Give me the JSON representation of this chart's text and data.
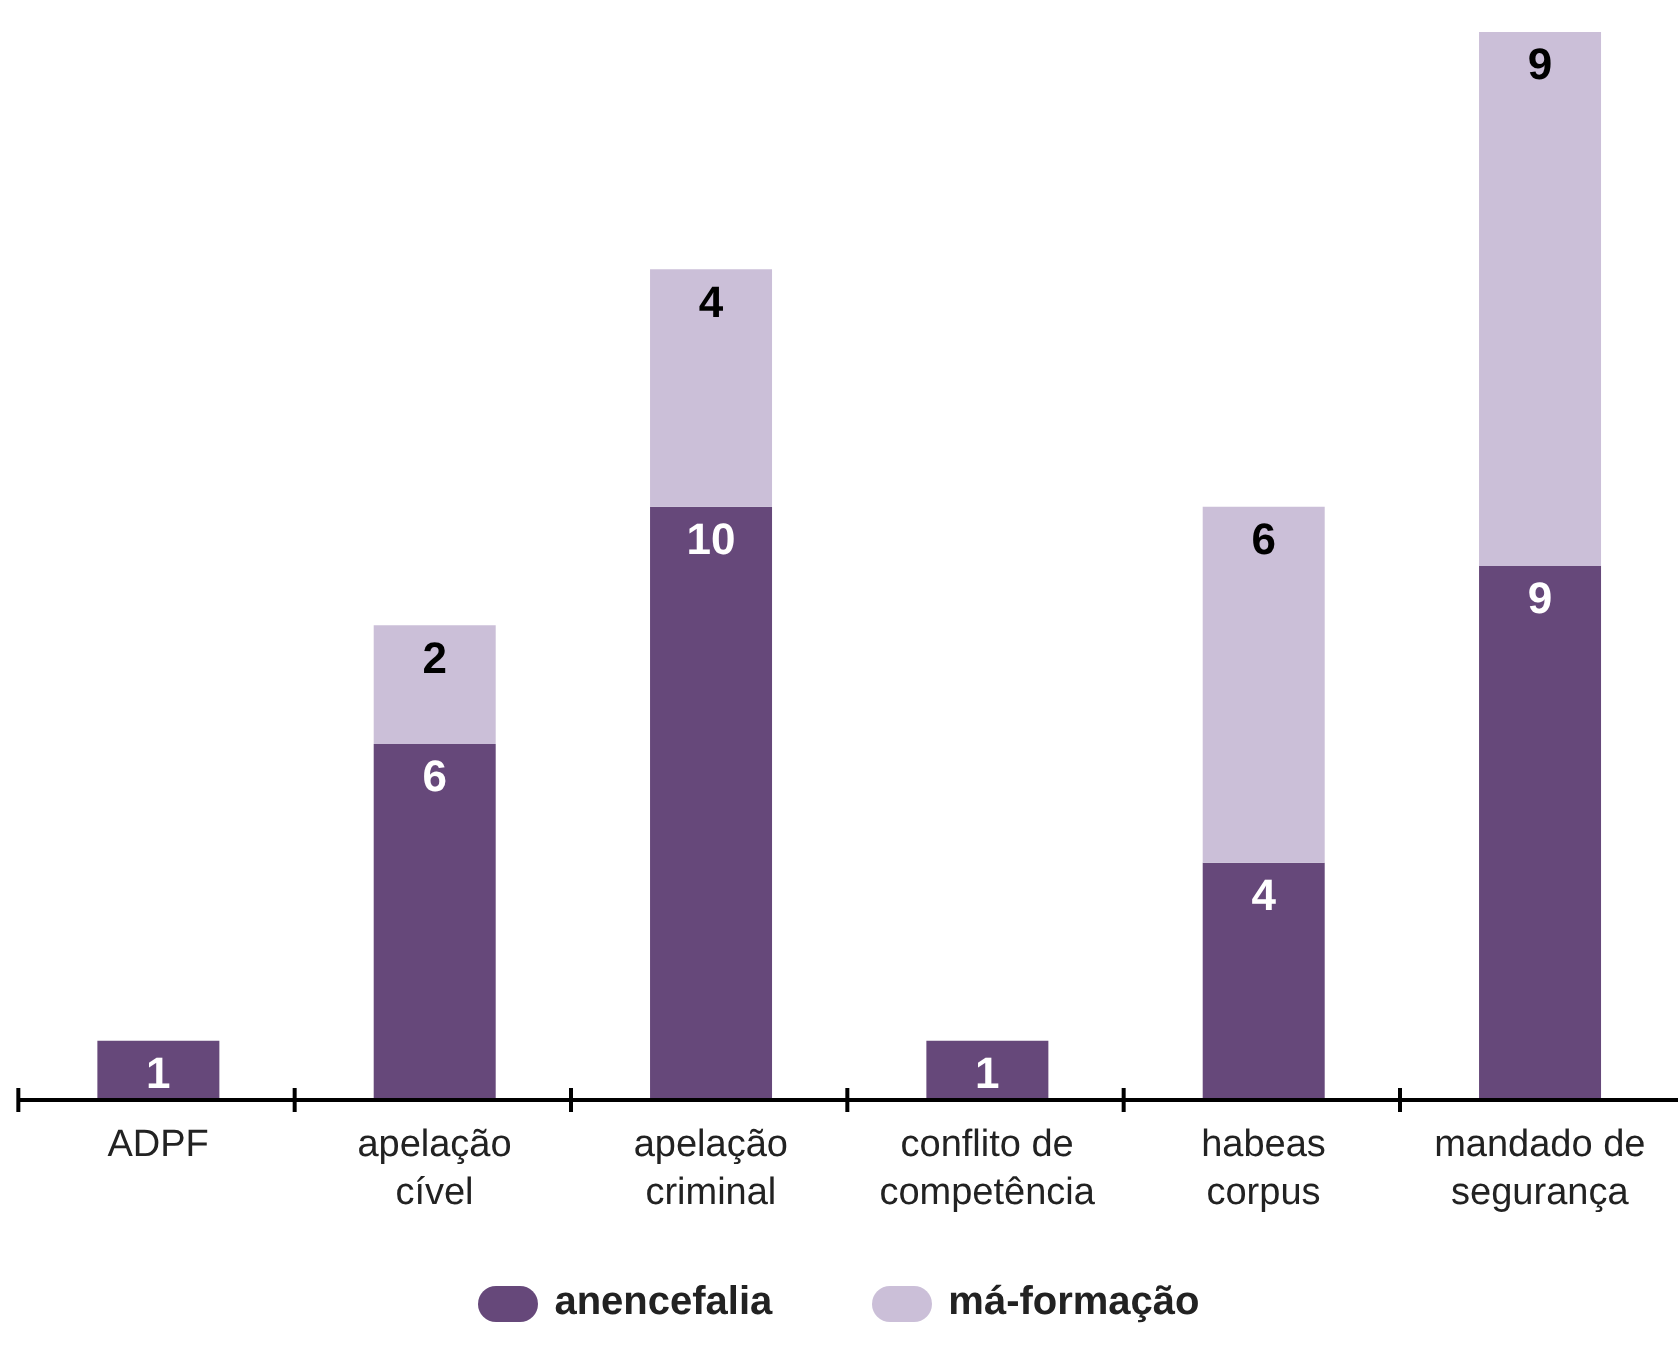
{
  "chart_data": {
    "type": "bar",
    "stacked": true,
    "categories": [
      "ADPF",
      "apelação cível",
      "apelação criminal",
      "conflito de competência",
      "habeas corpus",
      "mandado de segurança"
    ],
    "series": [
      {
        "name": "anencefalia",
        "color": "#66487a",
        "values": [
          1,
          6,
          10,
          1,
          4,
          9
        ]
      },
      {
        "name": "má-formação",
        "color": "#cbbfd8",
        "values": [
          null,
          2,
          4,
          null,
          6,
          9
        ]
      }
    ],
    "data_labels": true,
    "legend": "bottom",
    "grid": false
  }
}
